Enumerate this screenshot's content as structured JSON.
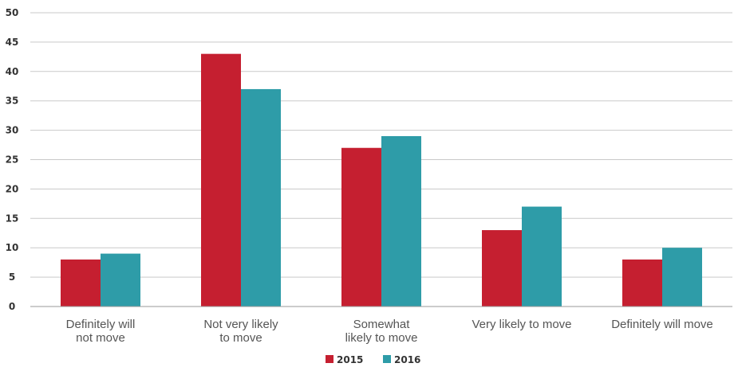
{
  "chart_data": {
    "type": "bar",
    "categories": [
      [
        "Definitely will",
        "not move"
      ],
      [
        "Not very likely",
        "to move"
      ],
      [
        "Somewhat",
        "likely to move"
      ],
      [
        "Very likely to move"
      ],
      [
        "Definitely will move"
      ]
    ],
    "series": [
      {
        "name": "2015",
        "color": "#c51f30",
        "values": [
          8,
          43,
          27,
          13,
          8
        ]
      },
      {
        "name": "2016",
        "color": "#2e9ca8",
        "values": [
          9,
          37,
          29,
          17,
          10
        ]
      }
    ],
    "y_ticks": [
      "0",
      "5",
      "10",
      "15",
      "20",
      "25",
      "30",
      "35",
      "40",
      "45",
      "50"
    ],
    "ylim": [
      0,
      50
    ],
    "grid": true,
    "legend_position": "bottom-center"
  }
}
